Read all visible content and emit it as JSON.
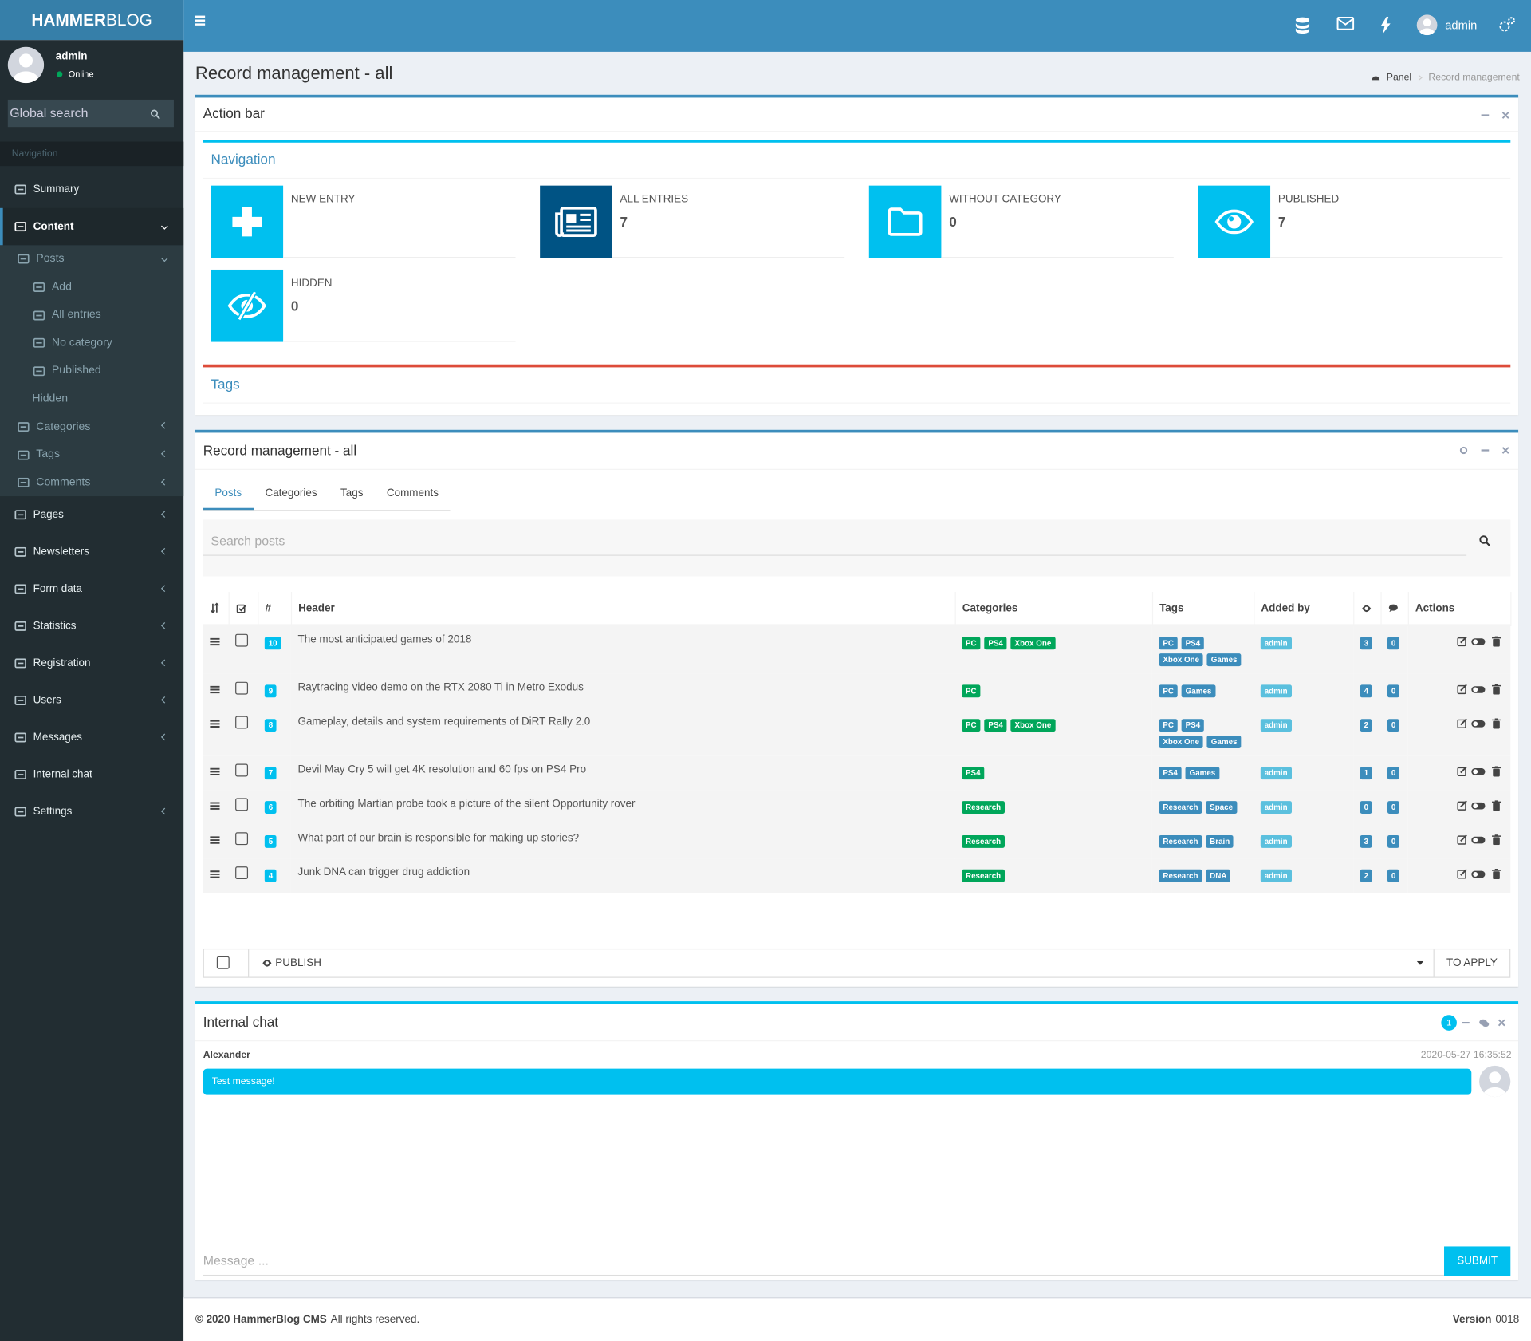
{
  "header": {
    "brand_bold": "HAMMER",
    "brand_light": "BLOG",
    "user": "admin"
  },
  "sidebar": {
    "user": "admin",
    "status": "Online",
    "search": "Global search",
    "nav_header": "Navigation",
    "menu": [
      {
        "label": "Summary"
      },
      {
        "label": "Content",
        "arrow": "down",
        "children": [
          {
            "label": "Posts",
            "arrow": "down",
            "children": [
              {
                "label": "Add"
              },
              {
                "label": "All entries"
              },
              {
                "label": "No category"
              },
              {
                "label": "Published"
              },
              {
                "label": "Hidden"
              }
            ]
          },
          {
            "label": "Categories",
            "arrow": "left"
          },
          {
            "label": "Tags",
            "arrow": "left"
          },
          {
            "label": "Comments",
            "arrow": "left"
          }
        ]
      },
      {
        "label": "Pages",
        "arrow": "left"
      },
      {
        "label": "Newsletters",
        "arrow": "left"
      },
      {
        "label": "Form data",
        "arrow": "left"
      },
      {
        "label": "Statistics",
        "arrow": "left"
      },
      {
        "label": "Registration",
        "arrow": "left"
      },
      {
        "label": "Users",
        "arrow": "left"
      },
      {
        "label": "Messages",
        "arrow": "left"
      },
      {
        "label": "Internal chat"
      },
      {
        "label": "Settings",
        "arrow": "left"
      }
    ]
  },
  "page": {
    "title": "Record management - all",
    "breadcrumb": [
      "Panel",
      "Record management"
    ]
  },
  "action_bar": {
    "title": "Action bar",
    "navigation": "Navigation",
    "tiles": [
      {
        "label": "NEW ENTRY"
      },
      {
        "label": "ALL ENTRIES",
        "count": 7
      },
      {
        "label": "WITHOUT CATEGORY",
        "count": 0
      },
      {
        "label": "PUBLISHED",
        "count": 7
      },
      {
        "label": "HIDDEN",
        "count": 0
      }
    ],
    "tags": "Tags"
  },
  "records": {
    "title": "Record management - all",
    "tabs": [
      "Posts",
      "Categories",
      "Tags",
      "Comments"
    ],
    "search": "Search posts",
    "columns": {
      "number": "#",
      "header": "Header",
      "categories": "Categories",
      "tags": "Tags",
      "added_by": "Added by",
      "actions": "Actions"
    },
    "rows": [
      {
        "id": 10,
        "header": "The most anticipated games of 2018",
        "categories": [
          "PC",
          "PS4",
          "Xbox One"
        ],
        "tags": [
          "PC",
          "PS4",
          "Xbox One",
          "Games"
        ],
        "added_by": "admin",
        "views": 3,
        "comments": 0
      },
      {
        "id": 9,
        "header": "Raytracing video demo on the RTX 2080 Ti in Metro Exodus",
        "categories": [
          "PC"
        ],
        "tags": [
          "PC",
          "Games"
        ],
        "added_by": "admin",
        "views": 4,
        "comments": 0
      },
      {
        "id": 8,
        "header": "Gameplay, details and system requirements of DiRT Rally 2.0",
        "categories": [
          "PC",
          "PS4",
          "Xbox One"
        ],
        "tags": [
          "PC",
          "PS4",
          "Xbox One",
          "Games"
        ],
        "added_by": "admin",
        "views": 2,
        "comments": 0
      },
      {
        "id": 7,
        "header": "Devil May Cry 5 will get 4K resolution and 60 fps on PS4 Pro",
        "categories": [
          "PS4"
        ],
        "tags": [
          "PS4",
          "Games"
        ],
        "added_by": "admin",
        "views": 1,
        "comments": 0
      },
      {
        "id": 6,
        "header": "The orbiting Martian probe took a picture of the silent Opportunity rover",
        "categories": [
          "Research"
        ],
        "tags": [
          "Research",
          "Space"
        ],
        "added_by": "admin",
        "views": 0,
        "comments": 0
      },
      {
        "id": 5,
        "header": "What part of our brain is responsible for making up stories?",
        "categories": [
          "Research"
        ],
        "tags": [
          "Research",
          "Brain"
        ],
        "added_by": "admin",
        "views": 3,
        "comments": 0
      },
      {
        "id": 4,
        "header": "Junk DNA can trigger drug addiction",
        "categories": [
          "Research"
        ],
        "tags": [
          "Research",
          "DNA"
        ],
        "added_by": "admin",
        "views": 2,
        "comments": 0
      }
    ],
    "bulk_action": "PUBLISH",
    "apply": "TO APPLY"
  },
  "chat": {
    "title": "Internal chat",
    "unread": 1,
    "messages": [
      {
        "author": "Alexander",
        "time": "2020-05-27 16:35:52",
        "text": "Test message!"
      }
    ],
    "placeholder": "Message ...",
    "submit": "SUBMIT"
  },
  "footer": {
    "copyright": "© 2020 HammerBlog CMS",
    "rights": "All rights reserved.",
    "version_label": "Version",
    "version": "0018"
  }
}
